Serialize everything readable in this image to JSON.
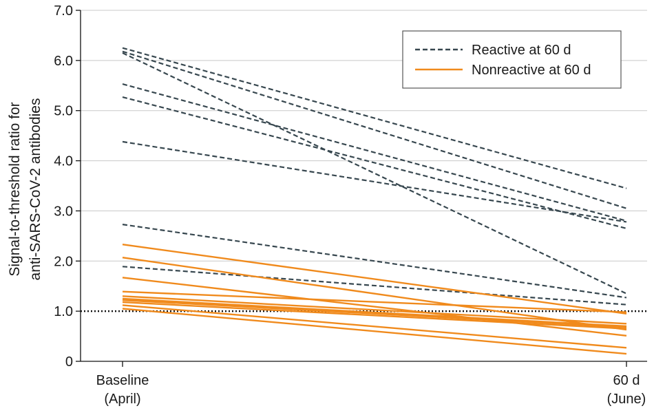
{
  "chart_data": {
    "type": "line",
    "ylabel_lines": [
      "Signal-to-threshold ratio for",
      "anti-SARS-CoV-2 antibodies"
    ],
    "x_categories": [
      {
        "lines": [
          "Baseline",
          "(April)"
        ]
      },
      {
        "lines": [
          "60 d",
          "(June)"
        ]
      }
    ],
    "ylim": [
      0,
      7
    ],
    "yticks": [
      "0",
      "1.0",
      "2.0",
      "3.0",
      "4.0",
      "5.0",
      "6.0",
      "7.0"
    ],
    "threshold": 1.0,
    "grid": "horizontal",
    "legend_position": "top-right",
    "legend": [
      {
        "label": "Reactive at 60 d",
        "style": "dashed",
        "color": "#37474f"
      },
      {
        "label": "Nonreactive at 60 d",
        "style": "solid",
        "color": "#f08a1c"
      }
    ],
    "series": [
      {
        "group": "reactive",
        "values": [
          6.25,
          3.45
        ]
      },
      {
        "group": "reactive",
        "values": [
          6.18,
          3.05
        ]
      },
      {
        "group": "reactive",
        "values": [
          6.15,
          1.35
        ]
      },
      {
        "group": "reactive",
        "values": [
          5.53,
          2.8
        ]
      },
      {
        "group": "reactive",
        "values": [
          5.27,
          2.65
        ]
      },
      {
        "group": "reactive",
        "values": [
          4.38,
          2.78
        ]
      },
      {
        "group": "reactive",
        "values": [
          2.73,
          1.27
        ]
      },
      {
        "group": "reactive",
        "values": [
          1.89,
          1.13
        ]
      },
      {
        "group": "nonreactive",
        "values": [
          2.33,
          0.95
        ]
      },
      {
        "group": "nonreactive",
        "values": [
          2.07,
          0.63
        ]
      },
      {
        "group": "nonreactive",
        "values": [
          1.67,
          0.51
        ]
      },
      {
        "group": "nonreactive",
        "values": [
          1.39,
          0.98
        ]
      },
      {
        "group": "nonreactive",
        "values": [
          1.3,
          0.75
        ]
      },
      {
        "group": "nonreactive",
        "values": [
          1.25,
          0.7
        ]
      },
      {
        "group": "nonreactive",
        "values": [
          1.22,
          0.68
        ]
      },
      {
        "group": "nonreactive",
        "values": [
          1.18,
          0.65
        ]
      },
      {
        "group": "nonreactive",
        "values": [
          1.12,
          0.27
        ]
      },
      {
        "group": "nonreactive",
        "values": [
          1.05,
          0.15
        ]
      }
    ]
  }
}
